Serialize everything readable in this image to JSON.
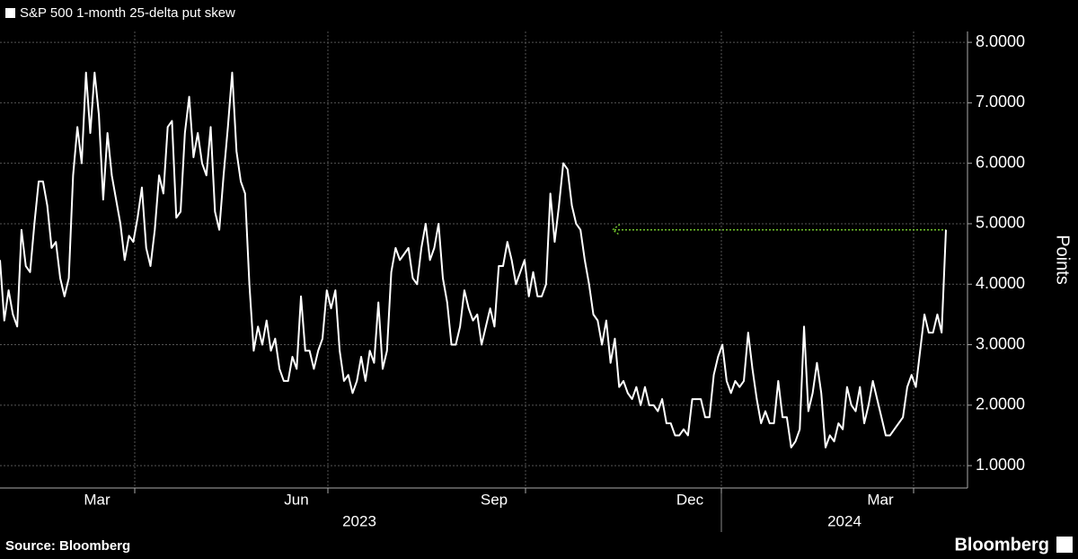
{
  "chart_data": {
    "type": "line",
    "series": [
      {
        "name": "S&P 500 1-month 25-delta put skew",
        "color": "#ffffff",
        "values": [
          4.4,
          3.4,
          3.9,
          3.5,
          3.3,
          4.9,
          4.3,
          4.2,
          5.0,
          5.7,
          5.7,
          5.3,
          4.6,
          4.7,
          4.1,
          3.8,
          4.1,
          5.8,
          6.6,
          6.0,
          7.5,
          6.5,
          7.5,
          6.8,
          5.4,
          6.5,
          5.8,
          5.4,
          5.0,
          4.4,
          4.8,
          4.7,
          5.1,
          5.6,
          4.6,
          4.3,
          4.9,
          5.8,
          5.5,
          6.6,
          6.7,
          5.1,
          5.2,
          6.5,
          7.1,
          6.1,
          6.5,
          6.0,
          5.8,
          6.6,
          5.2,
          4.9,
          5.8,
          6.6,
          7.5,
          6.2,
          5.7,
          5.5,
          4.0,
          2.9,
          3.3,
          3.0,
          3.4,
          2.9,
          3.1,
          2.6,
          2.4,
          2.4,
          2.8,
          2.6,
          3.8,
          2.9,
          2.9,
          2.6,
          2.9,
          3.1,
          3.9,
          3.6,
          3.9,
          2.9,
          2.4,
          2.5,
          2.2,
          2.4,
          2.8,
          2.4,
          2.9,
          2.7,
          3.7,
          2.6,
          2.9,
          4.2,
          4.6,
          4.4,
          4.5,
          4.6,
          4.1,
          4.0,
          4.6,
          5.0,
          4.4,
          4.6,
          5.0,
          4.1,
          3.7,
          3.0,
          3.0,
          3.3,
          3.9,
          3.6,
          3.4,
          3.5,
          3.0,
          3.3,
          3.6,
          3.3,
          4.3,
          4.3,
          4.7,
          4.4,
          4.0,
          4.2,
          4.4,
          3.8,
          4.2,
          3.8,
          3.8,
          4.0,
          5.5,
          4.7,
          5.3,
          6.0,
          5.9,
          5.3,
          5.0,
          4.9,
          4.4,
          4.0,
          3.5,
          3.4,
          3.0,
          3.4,
          2.7,
          3.1,
          2.3,
          2.4,
          2.2,
          2.1,
          2.3,
          2.0,
          2.3,
          2.0,
          2.0,
          1.9,
          2.1,
          1.7,
          1.7,
          1.5,
          1.5,
          1.6,
          1.5,
          2.1,
          2.1,
          2.1,
          1.8,
          1.8,
          2.5,
          2.8,
          3.0,
          2.4,
          2.2,
          2.4,
          2.3,
          2.4,
          3.2,
          2.6,
          2.1,
          1.7,
          1.9,
          1.7,
          1.7,
          2.4,
          1.8,
          1.8,
          1.3,
          1.4,
          1.6,
          3.3,
          1.9,
          2.2,
          2.7,
          2.2,
          1.3,
          1.5,
          1.4,
          1.7,
          1.6,
          2.3,
          2.0,
          1.9,
          2.3,
          1.7,
          2.0,
          2.4,
          2.1,
          1.8,
          1.5,
          1.5,
          1.6,
          1.7,
          1.8,
          2.3,
          2.5,
          2.3,
          2.9,
          3.5,
          3.2,
          3.2,
          3.5,
          3.2,
          4.9
        ]
      }
    ],
    "month_labels": [
      "Mar",
      "Jun",
      "Sep",
      "Dec",
      "Mar"
    ],
    "year_labels": [
      "2023",
      "2024"
    ],
    "ylabel": "Points",
    "ylim": [
      0.63,
      8.18
    ],
    "yticks": [
      {
        "value": 1,
        "label": "1.0000"
      },
      {
        "value": 2,
        "label": "2.0000"
      },
      {
        "value": 3,
        "label": "3.0000"
      },
      {
        "value": 4,
        "label": "4.0000"
      },
      {
        "value": 5,
        "label": "5.0000"
      },
      {
        "value": 6,
        "label": "6.0000"
      },
      {
        "value": 7,
        "label": "7.0000"
      },
      {
        "value": 8,
        "label": "8.0000"
      }
    ],
    "grid": true,
    "annotation_line": {
      "value": 4.9,
      "color": "#6fc22b"
    },
    "source": "Source: Bloomberg",
    "brand": "Bloomberg"
  }
}
